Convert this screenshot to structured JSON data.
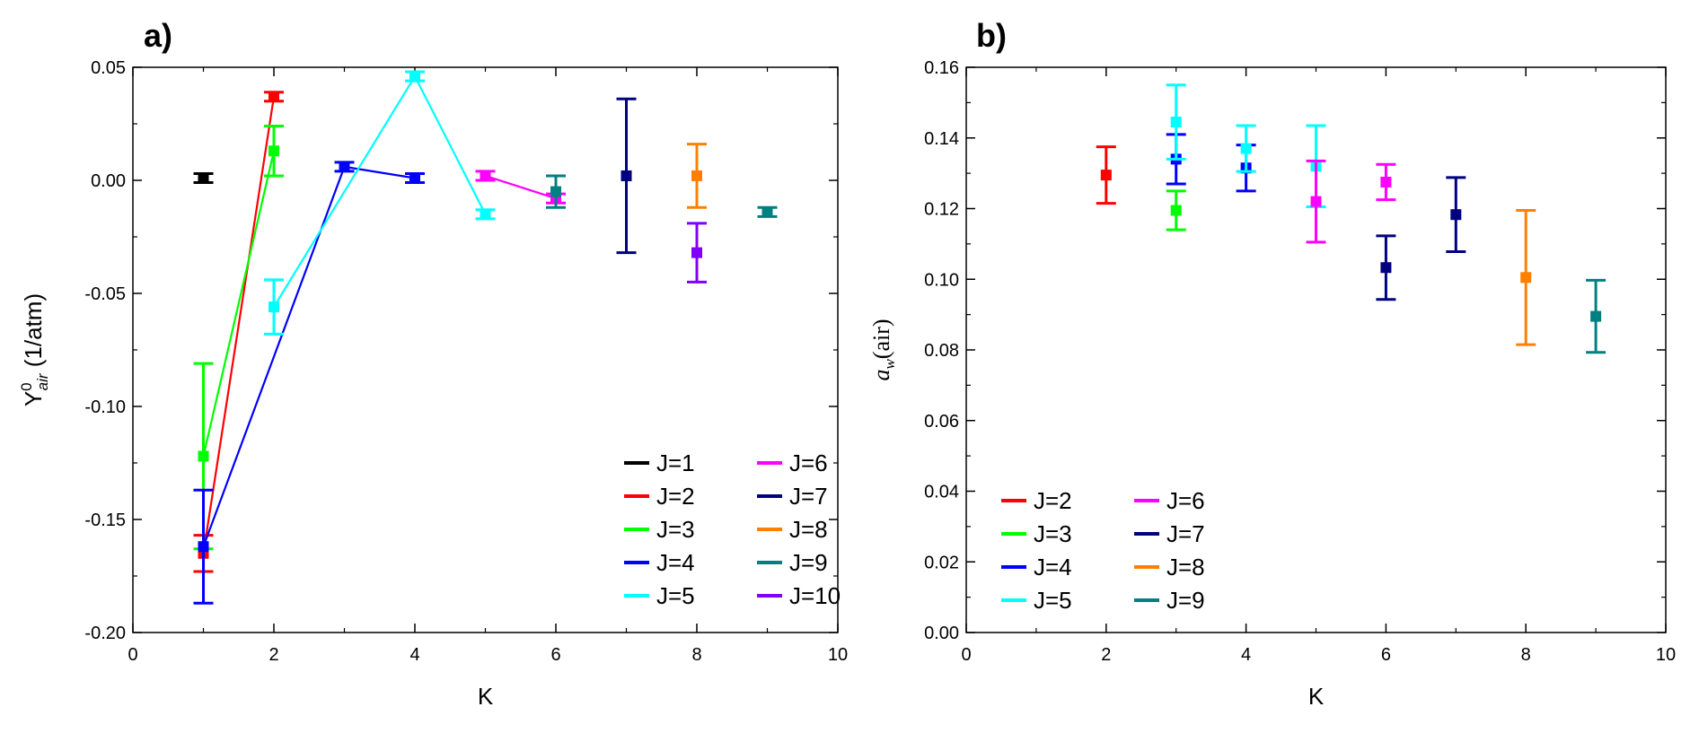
{
  "chart_data": [
    {
      "panel_label": "a)",
      "type": "scatter",
      "xlabel": "K",
      "ylabel": {
        "main": "Y",
        "sup": "0",
        "sub": "air",
        "unit": " (1/atm)"
      },
      "xlim": [
        0,
        10
      ],
      "ylim": [
        -0.2,
        0.05
      ],
      "xticks": [
        0,
        2,
        4,
        6,
        8,
        10
      ],
      "xtick_labels": [
        "0",
        "2",
        "4",
        "6",
        "8",
        "10"
      ],
      "yticks": [
        -0.2,
        -0.15,
        -0.1,
        -0.05,
        0.0,
        0.05
      ],
      "ytick_labels": [
        "-0.20",
        "-0.15",
        "-0.10",
        "-0.05",
        "0.00",
        "0.05"
      ],
      "legend_position": "bottom-right",
      "grid": false,
      "series": [
        {
          "name": "J=1",
          "color": "#000000",
          "line": false,
          "points": [
            {
              "x": 1,
              "y": 0.001,
              "err": 0.002
            }
          ]
        },
        {
          "name": "J=2",
          "color": "#ff0000",
          "line": true,
          "points": [
            {
              "x": 1,
              "y": -0.165,
              "err": 0.008
            },
            {
              "x": 2,
              "y": 0.037,
              "err": 0.002
            }
          ]
        },
        {
          "name": "J=3",
          "color": "#00ff00",
          "line": true,
          "points": [
            {
              "x": 1,
              "y": -0.122,
              "err": 0.041
            },
            {
              "x": 2,
              "y": 0.013,
              "err": 0.011
            }
          ]
        },
        {
          "name": "J=4",
          "color": "#0000ff",
          "line": true,
          "points": [
            {
              "x": 1,
              "y": -0.162,
              "err": 0.025
            },
            {
              "x": 3,
              "y": 0.006,
              "err": 0.002
            },
            {
              "x": 4,
              "y": 0.001,
              "err": 0.002
            }
          ]
        },
        {
          "name": "J=5",
          "color": "#00ffff",
          "line": true,
          "points": [
            {
              "x": 2,
              "y": -0.056,
              "err": 0.012
            },
            {
              "x": 4,
              "y": 0.046,
              "err": 0.002
            },
            {
              "x": 5,
              "y": -0.015,
              "err": 0.002
            }
          ]
        },
        {
          "name": "J=6",
          "color": "#ff00ff",
          "line": true,
          "points": [
            {
              "x": 5,
              "y": 0.002,
              "err": 0.002
            },
            {
              "x": 6,
              "y": -0.008,
              "err": 0.002
            }
          ]
        },
        {
          "name": "J=7",
          "color": "#000080",
          "line": false,
          "points": [
            {
              "x": 7,
              "y": 0.002,
              "err": 0.034
            }
          ]
        },
        {
          "name": "J=8",
          "color": "#ff8000",
          "line": false,
          "points": [
            {
              "x": 8,
              "y": 0.002,
              "err": 0.014
            }
          ]
        },
        {
          "name": "J=9",
          "color": "#008080",
          "line": false,
          "points": [
            {
              "x": 6,
              "y": -0.005,
              "err": 0.007
            },
            {
              "x": 9,
              "y": -0.014,
              "err": 0.002
            }
          ]
        },
        {
          "name": "J=10",
          "color": "#8000ff",
          "line": false,
          "points": [
            {
              "x": 8,
              "y": -0.032,
              "err": 0.013
            }
          ]
        }
      ]
    },
    {
      "panel_label": "b)",
      "type": "scatter",
      "xlabel": "K",
      "ylabel": {
        "main": "a",
        "sub": "w",
        "unit": "(air)"
      },
      "xlim": [
        0,
        10
      ],
      "ylim": [
        0,
        0.16
      ],
      "xticks": [
        0,
        2,
        4,
        6,
        8,
        10
      ],
      "xtick_labels": [
        "0",
        "2",
        "4",
        "6",
        "8",
        "10"
      ],
      "yticks": [
        0,
        0.02,
        0.04,
        0.06,
        0.08,
        0.1,
        0.12,
        0.14,
        0.16
      ],
      "ytick_labels": [
        "0.00",
        "0.02",
        "0.04",
        "0.06",
        "0.08",
        "0.10",
        "0.12",
        "0.14",
        "0.16"
      ],
      "legend_position": "bottom-left",
      "grid": false,
      "series": [
        {
          "name": "J=2",
          "color": "#ff0000",
          "line": false,
          "points": [
            {
              "x": 2,
              "y": 0.1295,
              "err": 0.008
            }
          ]
        },
        {
          "name": "J=3",
          "color": "#00ff00",
          "line": false,
          "points": [
            {
              "x": 3,
              "y": 0.1195,
              "err": 0.0055
            }
          ]
        },
        {
          "name": "J=4",
          "color": "#0000ff",
          "line": false,
          "points": [
            {
              "x": 3,
              "y": 0.134,
              "err": 0.007
            },
            {
              "x": 4,
              "y": 0.1315,
              "err": 0.0065
            }
          ]
        },
        {
          "name": "J=5",
          "color": "#00ffff",
          "line": false,
          "points": [
            {
              "x": 3,
              "y": 0.1445,
              "err": 0.0105
            },
            {
              "x": 4,
              "y": 0.137,
              "err": 0.0065
            },
            {
              "x": 5,
              "y": 0.132,
              "err": 0.0115
            }
          ]
        },
        {
          "name": "J=6",
          "color": "#ff00ff",
          "line": false,
          "points": [
            {
              "x": 5,
              "y": 0.122,
              "err": 0.0115
            },
            {
              "x": 6,
              "y": 0.1275,
              "err": 0.005
            }
          ]
        },
        {
          "name": "J=7",
          "color": "#000080",
          "line": false,
          "points": [
            {
              "x": 6,
              "y": 0.1033,
              "err": 0.009
            },
            {
              "x": 7,
              "y": 0.1183,
              "err": 0.0105
            }
          ]
        },
        {
          "name": "J=8",
          "color": "#ff8000",
          "line": false,
          "points": [
            {
              "x": 8,
              "y": 0.1005,
              "err": 0.019
            }
          ]
        },
        {
          "name": "J=9",
          "color": "#008080",
          "line": false,
          "points": [
            {
              "x": 9,
              "y": 0.0895,
              "err": 0.0102
            }
          ]
        }
      ]
    }
  ]
}
